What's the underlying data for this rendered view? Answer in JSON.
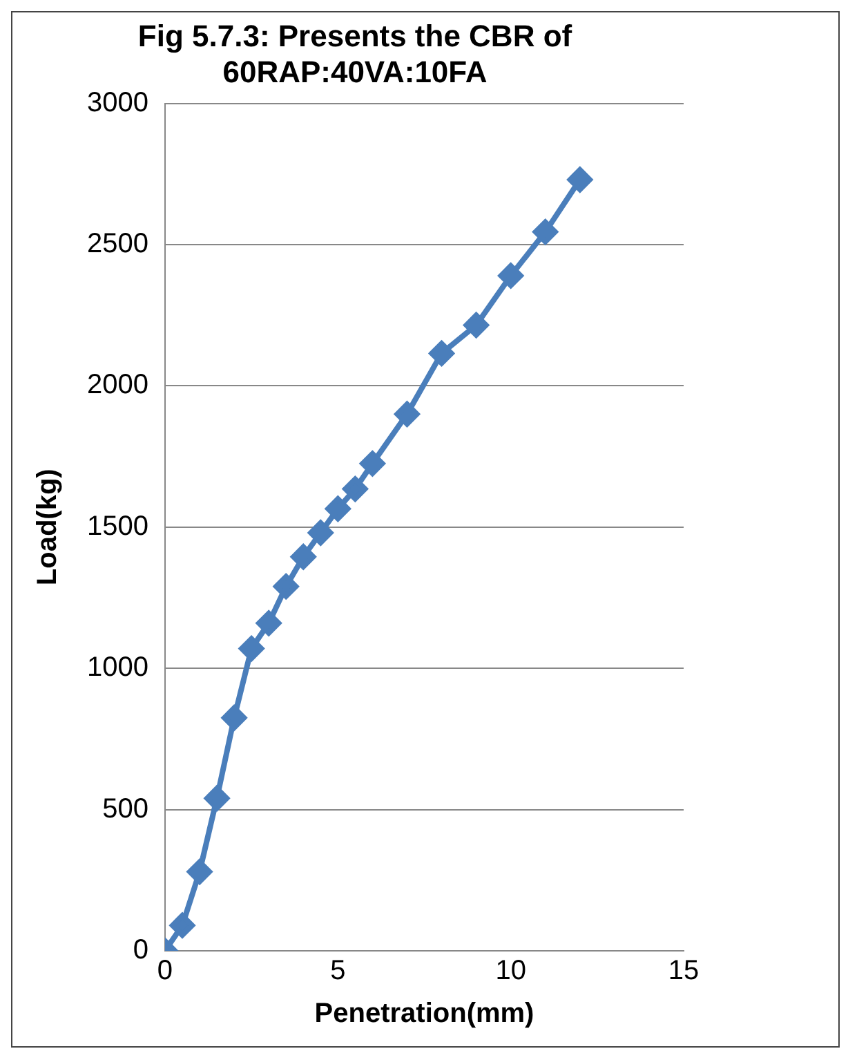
{
  "chart_data": {
    "type": "line",
    "title": [
      "Fig 5.7.3: Presents the CBR of",
      "60RAP:40VA:10FA"
    ],
    "xlabel": "Penetration(mm)",
    "ylabel": "Load(kg)",
    "x": [
      0,
      0.5,
      1,
      1.5,
      2,
      2.5,
      3,
      3.5,
      4,
      4.5,
      5,
      5.5,
      6,
      7,
      8,
      9,
      10,
      11,
      12
    ],
    "series": [
      {
        "color": "#4a7ebb",
        "values": [
          0,
          90,
          280,
          540,
          825,
          1070,
          1160,
          1290,
          1395,
          1480,
          1565,
          1635,
          1725,
          1900,
          2115,
          2215,
          2390,
          2545,
          2730
        ]
      }
    ],
    "xlim": [
      0,
      15
    ],
    "xticks": [
      0,
      5,
      10,
      15
    ],
    "ylim": [
      0,
      3000
    ],
    "yticks": [
      0,
      500,
      1000,
      1500,
      2000,
      2500,
      3000
    ],
    "grid": "y",
    "legend": false,
    "marker": "diamond",
    "line_style": "solid"
  }
}
